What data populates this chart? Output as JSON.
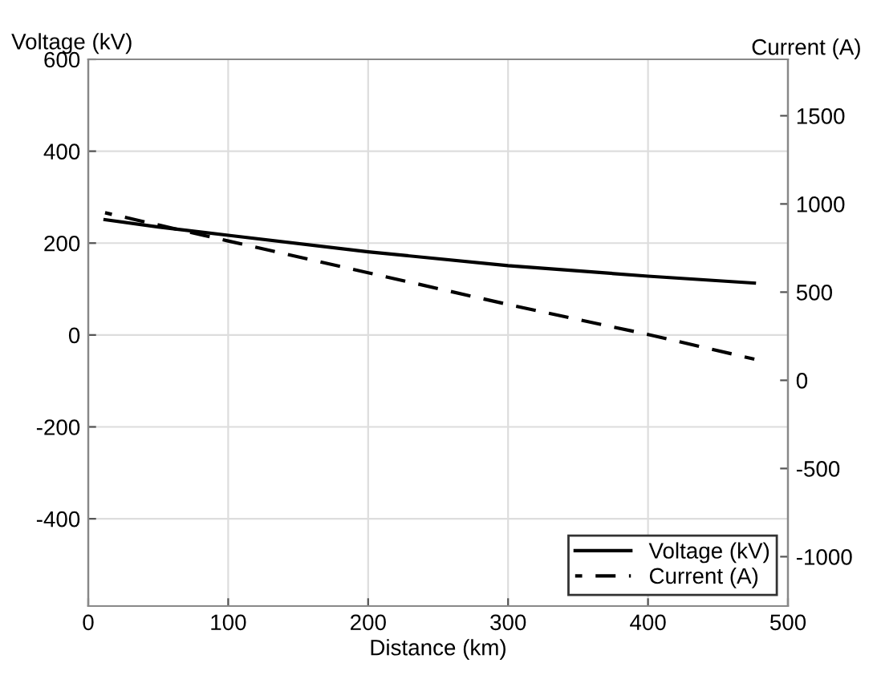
{
  "chart_data": {
    "type": "line",
    "xlabel": "Distance (km)",
    "ylabel": "Voltage (kV)",
    "y2label": "Current (A)",
    "xlim": [
      0,
      500
    ],
    "xticks": [
      0,
      100,
      200,
      300,
      400,
      500
    ],
    "ylim": [
      -590,
      600
    ],
    "yticks": [
      -400,
      -200,
      0,
      200,
      400,
      600
    ],
    "y2lim": [
      -1280,
      1820
    ],
    "y2ticks": [
      -1000,
      -500,
      0,
      500,
      1000,
      1500
    ],
    "grid": true,
    "legend": "bottom right",
    "series": [
      {
        "name": "Voltage (kV)",
        "color": "#000000",
        "line_style": "solid",
        "x": [
          12,
          50,
          100,
          200,
          300,
          400,
          476
        ],
        "values": [
          251,
          235,
          217,
          181,
          151,
          128,
          113
        ]
      },
      {
        "name": "Current (A)",
        "color": "#000000",
        "line_style": "dashed",
        "axis": "y2",
        "x": [
          12,
          100,
          200,
          300,
          400,
          476
        ],
        "values": [
          950,
          790,
          610,
          430,
          260,
          120
        ]
      }
    ]
  }
}
